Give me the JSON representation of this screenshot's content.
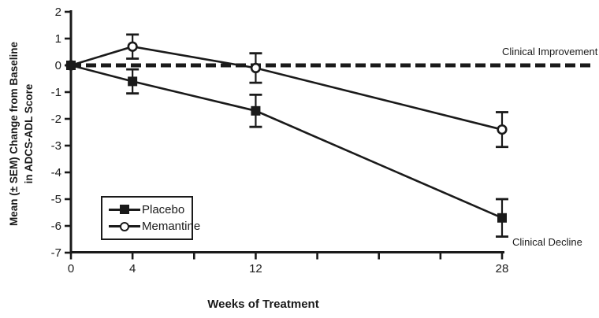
{
  "colors": {
    "ink": "#1a1a1a",
    "background": "#ffffff"
  },
  "chart_data": {
    "type": "line",
    "title": "",
    "xlabel": "Weeks of Treatment",
    "ylabel": [
      "Mean (± SEM) Change from Baseline",
      "in ADCS-ADL Score"
    ],
    "xlim": [
      0,
      28
    ],
    "ylim": [
      -7,
      2
    ],
    "grid": false,
    "y_ticks": [
      2,
      1,
      0,
      -1,
      -2,
      -3,
      -4,
      -5,
      -6,
      -7
    ],
    "x_ticks": [
      {
        "value": 0,
        "label": "0"
      },
      {
        "value": 4,
        "label": "4"
      },
      {
        "value": 8,
        "label": ""
      },
      {
        "value": 12,
        "label": "12"
      },
      {
        "value": 16,
        "label": ""
      },
      {
        "value": 20,
        "label": ""
      },
      {
        "value": 24,
        "label": ""
      },
      {
        "value": 28,
        "label": "28"
      }
    ],
    "series": [
      {
        "name": "Placebo",
        "marker": "filled-square",
        "x": [
          0,
          4,
          12,
          28
        ],
        "y": [
          0,
          -0.6,
          -1.7,
          -5.7
        ],
        "sem": [
          0,
          0.45,
          0.6,
          0.7
        ]
      },
      {
        "name": "Memantine",
        "marker": "open-circle",
        "x": [
          0,
          4,
          12,
          28
        ],
        "y": [
          0,
          0.7,
          -0.1,
          -2.4
        ],
        "sem": [
          0,
          0.45,
          0.55,
          0.65
        ]
      }
    ],
    "reference_line": {
      "y": 0,
      "style": "dashed",
      "label_above": "Clinical Improvement",
      "label_below": "Clinical Decline"
    },
    "legend": {
      "position": "lower-left",
      "entries": [
        "Placebo",
        "Memantine"
      ]
    }
  }
}
